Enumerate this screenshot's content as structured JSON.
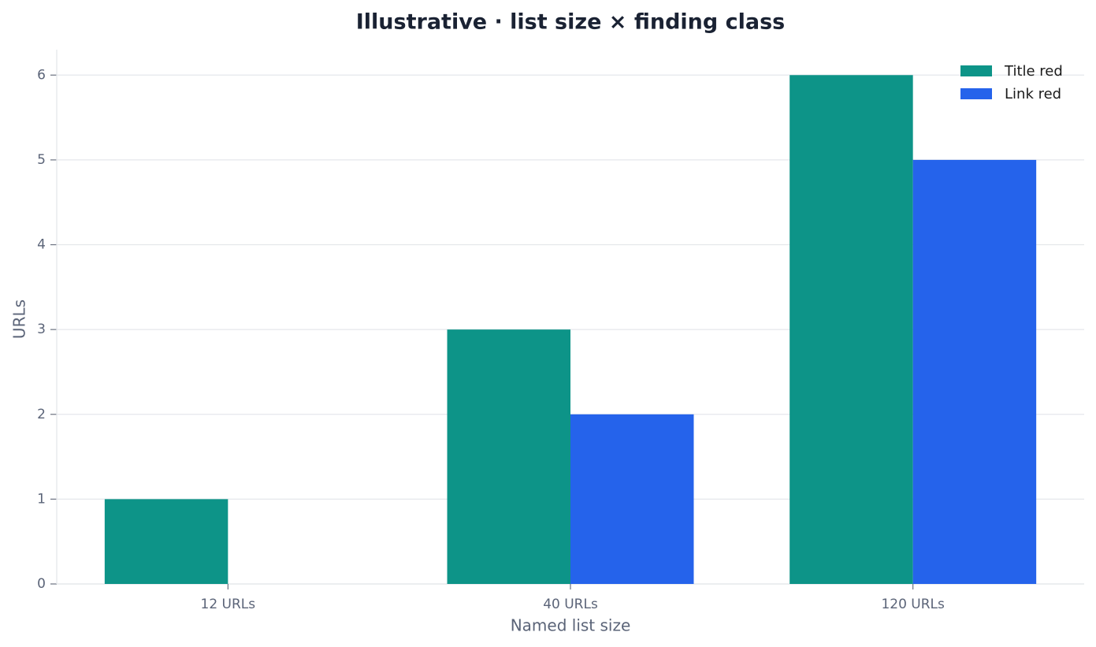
{
  "chart_data": {
    "type": "bar",
    "title": "Illustrative · list size × finding class",
    "x_label": "Named list size",
    "y_label": "URLs",
    "categories": [
      "12 URLs",
      "40 URLs",
      "120 URLs"
    ],
    "series": [
      {
        "name": "Title red",
        "color": "#0d9488",
        "values": [
          1,
          3,
          6
        ]
      },
      {
        "name": "Link red",
        "color": "#2563eb",
        "values": [
          0,
          2,
          5
        ]
      }
    ],
    "ylim": [
      0,
      6.3
    ],
    "yticks": [
      0,
      1,
      2,
      3,
      4,
      5,
      6
    ],
    "grid": true,
    "legend": "upper-right"
  }
}
